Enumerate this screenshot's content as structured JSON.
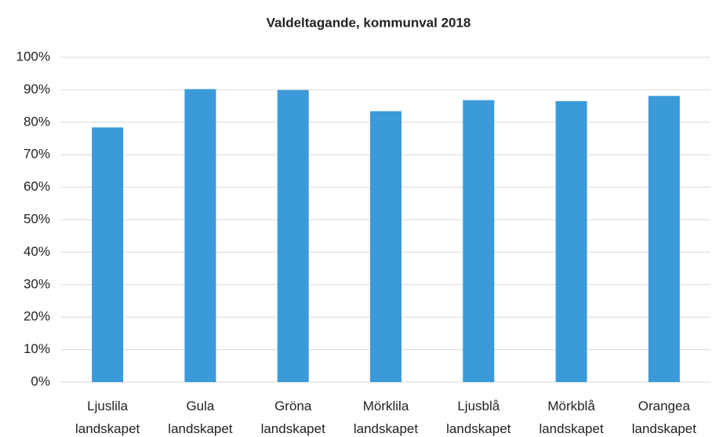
{
  "chart_data": {
    "type": "bar",
    "title": "Valdeltagande, kommunval 2018",
    "categories": [
      "Ljuslila landskapet",
      "Gula landskapet",
      "Gröna landskapet",
      "Mörklila landskapet",
      "Ljusblå landskapet",
      "Mörkblå landskapet",
      "Orangea landskapet"
    ],
    "values": [
      78.4,
      90.2,
      89.9,
      83.4,
      86.8,
      86.5,
      88.1
    ],
    "color": "#3b9ad9",
    "ylim": [
      0,
      100
    ],
    "yticks": [
      {
        "value": 0,
        "label": "0%"
      },
      {
        "value": 10,
        "label": "10%"
      },
      {
        "value": 20,
        "label": "20%"
      },
      {
        "value": 30,
        "label": "30%"
      },
      {
        "value": 40,
        "label": "40%"
      },
      {
        "value": 50,
        "label": "50%"
      },
      {
        "value": 60,
        "label": "60%"
      },
      {
        "value": 70,
        "label": "70%"
      },
      {
        "value": 80,
        "label": "80%"
      },
      {
        "value": 90,
        "label": "90%"
      },
      {
        "value": 100,
        "label": "100%"
      }
    ],
    "grid": true
  }
}
